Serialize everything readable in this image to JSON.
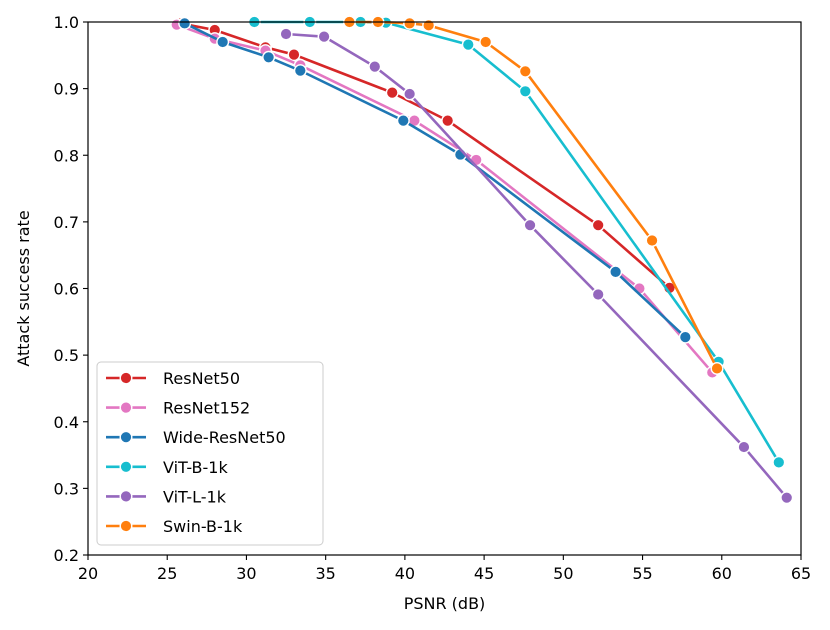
{
  "chart_data": {
    "type": "line",
    "xlabel": "PSNR (dB)",
    "ylabel": "Attack success rate",
    "xlim": [
      20,
      65
    ],
    "ylim": [
      0.2,
      1.0
    ],
    "xticks": [
      20,
      25,
      30,
      35,
      40,
      45,
      50,
      55,
      60,
      65
    ],
    "yticks": [
      0.2,
      0.3,
      0.4,
      0.5,
      0.6,
      0.7,
      0.8,
      0.9,
      1.0
    ],
    "xtick_labels": [
      "20",
      "25",
      "30",
      "35",
      "40",
      "45",
      "50",
      "55",
      "60",
      "65"
    ],
    "ytick_labels": [
      "0.2",
      "0.3",
      "0.4",
      "0.5",
      "0.6",
      "0.7",
      "0.8",
      "0.9",
      "1.0"
    ],
    "grid": false,
    "legend_position": "lower-left",
    "series": [
      {
        "name": "ResNet50",
        "color": "#d62728",
        "points": [
          [
            25.8,
            0.998
          ],
          [
            28.0,
            0.988
          ],
          [
            31.2,
            0.962
          ],
          [
            33.0,
            0.951
          ],
          [
            39.2,
            0.894
          ],
          [
            42.7,
            0.852
          ],
          [
            52.2,
            0.695
          ],
          [
            56.7,
            0.601
          ]
        ]
      },
      {
        "name": "ResNet152",
        "color": "#e377c2",
        "points": [
          [
            25.6,
            0.996
          ],
          [
            28.0,
            0.975
          ],
          [
            31.2,
            0.957
          ],
          [
            33.4,
            0.935
          ],
          [
            40.6,
            0.852
          ],
          [
            44.5,
            0.793
          ],
          [
            54.8,
            0.6
          ],
          [
            59.4,
            0.474
          ]
        ]
      },
      {
        "name": "Wide-ResNet50",
        "color": "#1f77b4",
        "points": [
          [
            26.1,
            0.998
          ],
          [
            28.5,
            0.97
          ],
          [
            31.4,
            0.947
          ],
          [
            33.4,
            0.927
          ],
          [
            39.9,
            0.852
          ],
          [
            43.5,
            0.801
          ],
          [
            53.3,
            0.625
          ],
          [
            57.7,
            0.527
          ]
        ]
      },
      {
        "name": "ViT-B-1k",
        "color": "#17becf",
        "points": [
          [
            30.5,
            1.0
          ],
          [
            34.0,
            1.0
          ],
          [
            37.2,
            1.0
          ],
          [
            38.8,
            0.999
          ],
          [
            44.0,
            0.966
          ],
          [
            47.6,
            0.896
          ],
          [
            59.8,
            0.49
          ],
          [
            63.6,
            0.339
          ]
        ]
      },
      {
        "name": "ViT-L-1k",
        "color": "#9467bd",
        "points": [
          [
            32.5,
            0.982
          ],
          [
            34.9,
            0.978
          ],
          [
            38.1,
            0.933
          ],
          [
            40.3,
            0.892
          ],
          [
            47.9,
            0.695
          ],
          [
            52.2,
            0.591
          ],
          [
            61.4,
            0.362
          ],
          [
            64.1,
            0.286
          ]
        ]
      },
      {
        "name": "Swin-B-1k",
        "color": "#ff7f0e",
        "points": [
          [
            36.5,
            1.0
          ],
          [
            38.3,
            1.0
          ],
          [
            40.3,
            0.998
          ],
          [
            41.5,
            0.995
          ],
          [
            45.1,
            0.97
          ],
          [
            47.6,
            0.926
          ],
          [
            55.6,
            0.672
          ],
          [
            59.7,
            0.48
          ]
        ]
      }
    ]
  }
}
